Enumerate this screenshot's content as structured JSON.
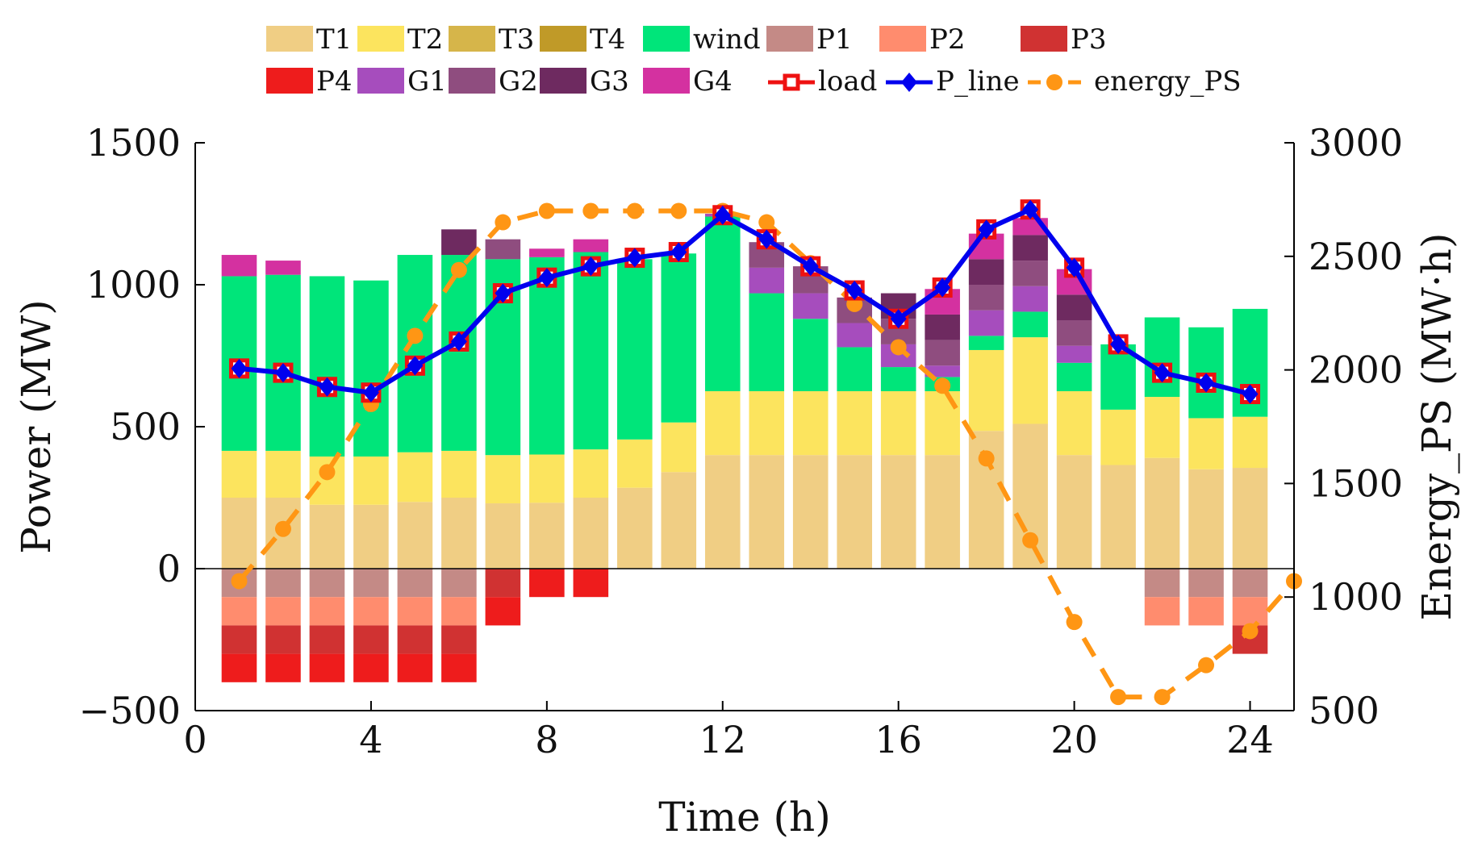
{
  "chart_data": {
    "type": "bar",
    "stacked": true,
    "xlabel": "Time (h)",
    "ylabel": "Power (MW)",
    "y2label": "Energy_PS (MW·h)",
    "xlim": [
      0,
      25
    ],
    "xticks": [
      0,
      4,
      8,
      12,
      16,
      20,
      24
    ],
    "ylim": [
      -500,
      1500
    ],
    "yticks": [
      -500,
      0,
      500,
      1000,
      1500
    ],
    "ytick_labels": [
      "−500",
      "0",
      "500",
      "1000",
      "1500"
    ],
    "y2lim": [
      500,
      3000
    ],
    "y2ticks": [
      500,
      1000,
      1500,
      2000,
      2500,
      3000
    ],
    "legend_position": "top",
    "hours": [
      1,
      2,
      3,
      4,
      5,
      6,
      7,
      8,
      9,
      10,
      11,
      12,
      13,
      14,
      15,
      16,
      17,
      18,
      19,
      20,
      21,
      22,
      23,
      24
    ],
    "positive_series": [
      {
        "name": "T1",
        "color": "#F0CE84",
        "values": [
          250,
          250,
          225,
          225,
          235,
          250,
          230,
          232,
          250,
          285,
          340,
          400,
          400,
          400,
          400,
          400,
          400,
          485,
          510,
          400,
          365,
          390,
          350,
          355
        ]
      },
      {
        "name": "T2",
        "color": "#FCE45E",
        "values": [
          165,
          165,
          170,
          170,
          175,
          165,
          170,
          170,
          170,
          170,
          175,
          225,
          225,
          225,
          225,
          225,
          225,
          285,
          305,
          225,
          195,
          215,
          180,
          180
        ]
      },
      {
        "name": "T3",
        "color": "#D6B54A",
        "values": [
          0,
          0,
          0,
          0,
          0,
          0,
          0,
          0,
          0,
          0,
          0,
          0,
          0,
          0,
          0,
          0,
          0,
          0,
          0,
          0,
          0,
          0,
          0,
          0
        ]
      },
      {
        "name": "T4",
        "color": "#C09A28",
        "values": [
          0,
          0,
          0,
          0,
          0,
          0,
          0,
          0,
          0,
          0,
          0,
          0,
          0,
          0,
          0,
          0,
          0,
          0,
          0,
          0,
          0,
          0,
          0,
          0
        ]
      },
      {
        "name": "wind",
        "color": "#00E57A",
        "values": [
          615,
          620,
          635,
          620,
          695,
          690,
          690,
          695,
          695,
          635,
          595,
          615,
          345,
          255,
          155,
          85,
          50,
          50,
          90,
          100,
          230,
          280,
          320,
          380
        ]
      },
      {
        "name": "P1",
        "color": "#C48A86",
        "values": [
          0,
          0,
          0,
          0,
          0,
          0,
          0,
          0,
          0,
          0,
          0,
          0,
          0,
          0,
          0,
          0,
          0,
          0,
          0,
          0,
          0,
          0,
          0,
          0
        ]
      },
      {
        "name": "P2",
        "color": "#FF8C6E",
        "values": [
          0,
          0,
          0,
          0,
          0,
          0,
          0,
          0,
          0,
          0,
          0,
          0,
          0,
          0,
          0,
          0,
          0,
          0,
          0,
          0,
          0,
          0,
          0,
          0
        ]
      },
      {
        "name": "P3",
        "color": "#D03232",
        "values": [
          0,
          0,
          0,
          0,
          0,
          0,
          0,
          0,
          0,
          0,
          0,
          0,
          0,
          0,
          0,
          0,
          0,
          0,
          0,
          0,
          0,
          0,
          0,
          0
        ]
      },
      {
        "name": "P4",
        "color": "#EE1C1C",
        "values": [
          0,
          0,
          0,
          0,
          0,
          0,
          0,
          0,
          0,
          0,
          0,
          0,
          0,
          0,
          0,
          0,
          0,
          0,
          0,
          0,
          0,
          0,
          0,
          0
        ]
      },
      {
        "name": "G1",
        "color": "#A64DBD",
        "values": [
          0,
          0,
          0,
          0,
          0,
          0,
          0,
          0,
          0,
          0,
          0,
          10,
          90,
          90,
          85,
          80,
          40,
          90,
          90,
          60,
          0,
          0,
          0,
          0
        ]
      },
      {
        "name": "G2",
        "color": "#8F4D7F",
        "values": [
          0,
          0,
          0,
          0,
          0,
          0,
          70,
          0,
          0,
          0,
          0,
          0,
          90,
          95,
          90,
          90,
          90,
          90,
          90,
          90,
          0,
          0,
          0,
          0
        ]
      },
      {
        "name": "G3",
        "color": "#6E2A60",
        "values": [
          0,
          0,
          0,
          0,
          0,
          90,
          0,
          0,
          0,
          0,
          0,
          0,
          0,
          0,
          0,
          90,
          90,
          90,
          90,
          90,
          0,
          0,
          0,
          0
        ]
      },
      {
        "name": "G4",
        "color": "#D431A0",
        "values": [
          75,
          50,
          0,
          0,
          0,
          0,
          0,
          30,
          45,
          0,
          0,
          0,
          0,
          0,
          0,
          0,
          90,
          90,
          60,
          90,
          0,
          0,
          0,
          0
        ]
      }
    ],
    "negative_series": [
      {
        "name": "P1",
        "color": "#C48A86",
        "values": [
          -100,
          -100,
          -100,
          -100,
          -100,
          -100,
          0,
          0,
          0,
          0,
          0,
          0,
          0,
          0,
          0,
          0,
          0,
          0,
          0,
          0,
          0,
          -100,
          -100,
          -100
        ]
      },
      {
        "name": "P2",
        "color": "#FF8C6E",
        "values": [
          -100,
          -100,
          -100,
          -100,
          -100,
          -100,
          0,
          0,
          0,
          0,
          0,
          0,
          0,
          0,
          0,
          0,
          0,
          0,
          0,
          0,
          0,
          -100,
          -100,
          -100
        ]
      },
      {
        "name": "P3",
        "color": "#D03232",
        "values": [
          -100,
          -100,
          -100,
          -100,
          -100,
          -100,
          -100,
          0,
          0,
          0,
          0,
          0,
          0,
          0,
          0,
          0,
          0,
          0,
          0,
          0,
          0,
          0,
          0,
          -100
        ]
      },
      {
        "name": "P4",
        "color": "#EE1C1C",
        "values": [
          -100,
          -100,
          -100,
          -100,
          -100,
          -100,
          -100,
          -100,
          -100,
          0,
          0,
          0,
          0,
          0,
          0,
          0,
          0,
          0,
          0,
          0,
          0,
          0,
          0,
          0
        ]
      }
    ],
    "load": {
      "name": "load",
      "color": "#EE1111",
      "values": [
        705,
        690,
        640,
        620,
        715,
        800,
        970,
        1025,
        1065,
        1095,
        1115,
        1245,
        1160,
        1065,
        980,
        880,
        990,
        1195,
        1265,
        1060,
        790,
        690,
        655,
        615
      ]
    },
    "p_line": {
      "name": "P_line",
      "color": "#0000EE",
      "values": [
        705,
        690,
        640,
        620,
        715,
        800,
        970,
        1025,
        1065,
        1095,
        1115,
        1245,
        1160,
        1065,
        980,
        880,
        990,
        1195,
        1265,
        1060,
        790,
        690,
        655,
        615
      ]
    },
    "energy_ps": {
      "name": "energy_PS",
      "color": "#FF9614",
      "x": [
        1,
        2,
        3,
        4,
        5,
        6,
        7,
        8,
        9,
        10,
        11,
        12,
        13,
        14,
        15,
        16,
        17,
        18,
        19,
        20,
        21,
        22,
        23,
        24,
        25
      ],
      "values": [
        1070,
        1300,
        1550,
        1850,
        2150,
        2440,
        2650,
        2700,
        2700,
        2700,
        2700,
        2700,
        2650,
        2470,
        2290,
        2100,
        1930,
        1610,
        1250,
        890,
        560,
        560,
        700,
        850,
        1070
      ]
    },
    "legend": [
      {
        "label": "T1",
        "kind": "patch",
        "color": "#F0CE84"
      },
      {
        "label": "T2",
        "kind": "patch",
        "color": "#FCE45E"
      },
      {
        "label": "T3",
        "kind": "patch",
        "color": "#D6B54A"
      },
      {
        "label": "T4",
        "kind": "patch",
        "color": "#C09A28"
      },
      {
        "label": "wind",
        "kind": "patch",
        "color": "#00E57A"
      },
      {
        "label": "P1",
        "kind": "patch",
        "color": "#C48A86"
      },
      {
        "label": "P2",
        "kind": "patch",
        "color": "#FF8C6E"
      },
      {
        "label": "P3",
        "kind": "patch",
        "color": "#D03232"
      },
      {
        "label": "P4",
        "kind": "patch",
        "color": "#EE1C1C"
      },
      {
        "label": "G1",
        "kind": "patch",
        "color": "#A64DBD"
      },
      {
        "label": "G2",
        "kind": "patch",
        "color": "#8F4D7F"
      },
      {
        "label": "G3",
        "kind": "patch",
        "color": "#6E2A60"
      },
      {
        "label": "G4",
        "kind": "patch",
        "color": "#D431A0"
      },
      {
        "label": "load",
        "kind": "line-square",
        "color": "#EE1111"
      },
      {
        "label": "P_line",
        "kind": "line-diamond",
        "color": "#0000EE"
      },
      {
        "label": "energy_PS",
        "kind": "dash-circle",
        "color": "#FF9614"
      }
    ]
  }
}
